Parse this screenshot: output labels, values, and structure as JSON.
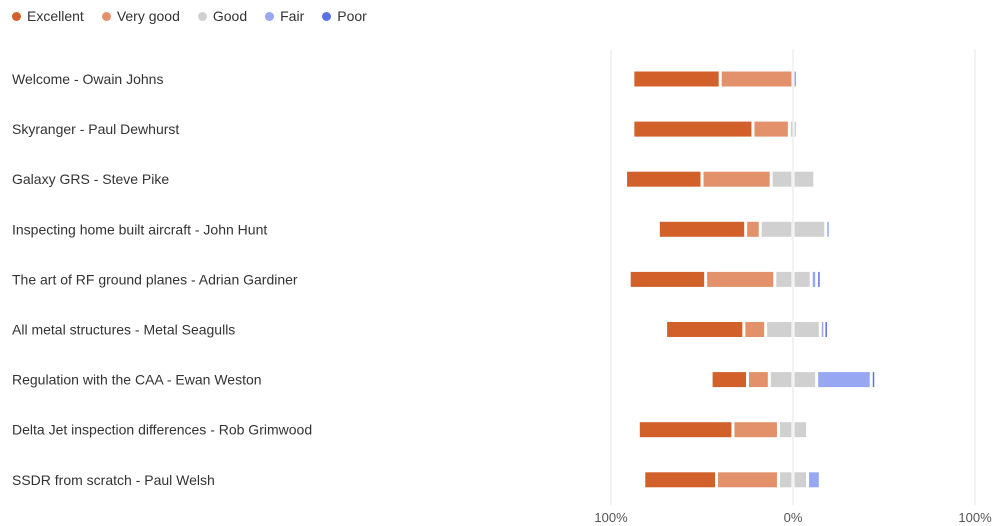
{
  "chart_data": {
    "type": "bar",
    "subtype": "diverging-stacked-horizontal",
    "title": "",
    "legend": {
      "position": "top-left",
      "entries": [
        {
          "name": "Excellent",
          "color": "#d2602a"
        },
        {
          "name": "Very good",
          "color": "#e2916a"
        },
        {
          "name": "Good",
          "color": "#d0d0d0"
        },
        {
          "name": "Fair",
          "color": "#97a7f2"
        },
        {
          "name": "Poor",
          "color": "#5a70e6"
        }
      ]
    },
    "x_ticks": [
      "100%",
      "0%",
      "100%"
    ],
    "xlim": [
      -100,
      100
    ],
    "grid": true,
    "categories": [
      "Welcome - Owain Johns",
      "Skyranger - Paul Dewhurst",
      "Galaxy GRS - Steve Pike",
      "Inspecting home built aircraft - John Hunt",
      "The art of RF ground planes - Adrian Gardiner",
      "All metal structures - Metal Seagulls",
      "Regulation with the CAA - Ewan Weston",
      "Delta Jet inspection differences - Rob Grimwood",
      "SSDR from scratch - Paul Welsh"
    ],
    "series": [
      {
        "name": "Excellent",
        "values": [
          48,
          66,
          42,
          48,
          42,
          43,
          20,
          52,
          40
        ]
      },
      {
        "name": "Very good",
        "values": [
          40,
          20,
          38,
          8,
          38,
          12,
          12,
          25,
          34
        ]
      },
      {
        "name": "Good",
        "values": [
          0,
          4,
          24,
          36,
          20,
          30,
          26,
          16,
          16
        ]
      },
      {
        "name": "Fair",
        "values": [
          2,
          0,
          0,
          2,
          3,
          2,
          30,
          0,
          7
        ]
      },
      {
        "name": "Poor",
        "values": [
          0,
          0,
          0,
          0,
          2,
          2,
          2,
          0,
          0
        ]
      }
    ]
  }
}
